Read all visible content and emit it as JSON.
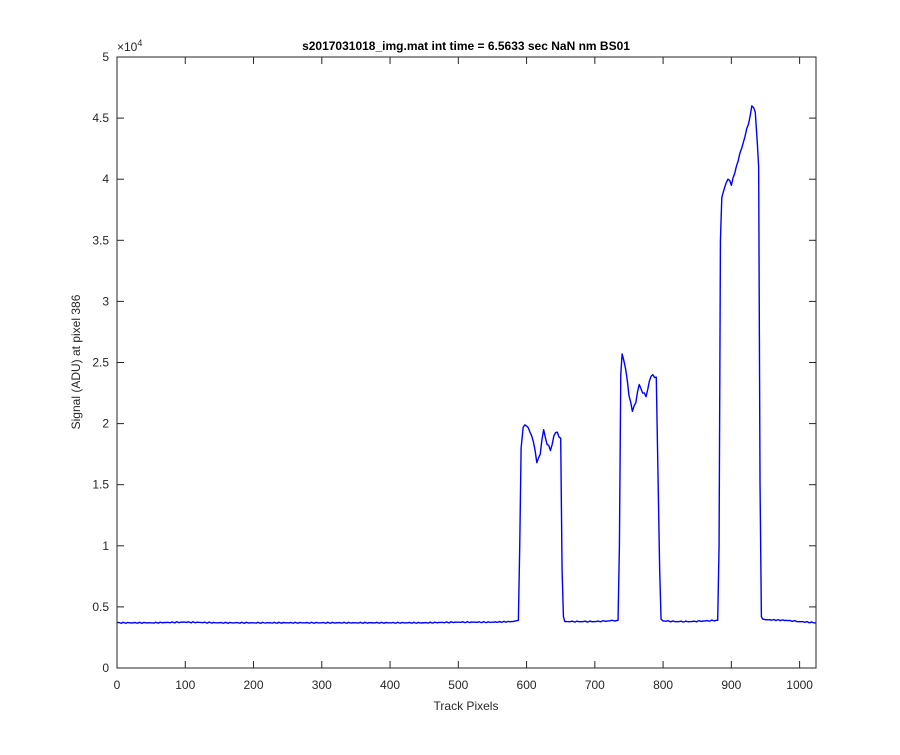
{
  "chart_data": {
    "type": "line",
    "title": "s2017031018_img.mat int time = 6.5633 sec  NaN nm BS01",
    "xlabel": "Track Pixels",
    "ylabel": "Signal (ADU) at pixel 386",
    "xlim": [
      0,
      1024
    ],
    "ylim": [
      0,
      50000
    ],
    "x_ticks": [
      0,
      100,
      200,
      300,
      400,
      500,
      600,
      700,
      800,
      900,
      1000
    ],
    "x_tick_labels": [
      "0",
      "100",
      "200",
      "300",
      "400",
      "500",
      "600",
      "700",
      "800",
      "900",
      "1000"
    ],
    "y_ticks": [
      0,
      5000,
      10000,
      15000,
      20000,
      25000,
      30000,
      35000,
      40000,
      45000,
      50000
    ],
    "y_tick_labels": [
      "0",
      "0.5",
      "1",
      "1.5",
      "2",
      "2.5",
      "3",
      "3.5",
      "4",
      "4.5",
      "5"
    ],
    "y_exponent_base": "×10",
    "y_exponent_power": "4",
    "grid": false,
    "series": [
      {
        "color": "#0000ff",
        "x": [
          0,
          50,
          100,
          150,
          200,
          250,
          300,
          350,
          400,
          450,
          500,
          550,
          580,
          588,
          590,
          592,
          595,
          600,
          605,
          610,
          615,
          620,
          625,
          630,
          635,
          640,
          645,
          650,
          652,
          654,
          656,
          660,
          680,
          700,
          720,
          734,
          736,
          738,
          740,
          745,
          750,
          755,
          760,
          765,
          770,
          775,
          780,
          785,
          790,
          795,
          797,
          800,
          820,
          840,
          860,
          880,
          882,
          884,
          886,
          890,
          895,
          900,
          905,
          910,
          915,
          920,
          925,
          930,
          935,
          938,
          940,
          942,
          944,
          946,
          950,
          980,
          1000,
          1024
        ],
        "y": [
          3700,
          3700,
          3750,
          3700,
          3700,
          3700,
          3700,
          3700,
          3700,
          3700,
          3750,
          3750,
          3800,
          3900,
          10000,
          18000,
          19700,
          19800,
          19300,
          18500,
          16800,
          17500,
          19500,
          18300,
          17800,
          19000,
          19300,
          18800,
          8000,
          4200,
          3800,
          3800,
          3800,
          3800,
          3850,
          3900,
          10000,
          24000,
          25700,
          24500,
          22300,
          21000,
          21700,
          23200,
          22500,
          22200,
          23500,
          24000,
          23800,
          8000,
          4000,
          3850,
          3800,
          3800,
          3850,
          3900,
          10000,
          35000,
          38500,
          39300,
          40000,
          39500,
          40500,
          41500,
          42500,
          43500,
          44500,
          46000,
          45500,
          43000,
          41000,
          15000,
          4200,
          4000,
          3950,
          3900,
          3800,
          3700
        ]
      }
    ]
  }
}
